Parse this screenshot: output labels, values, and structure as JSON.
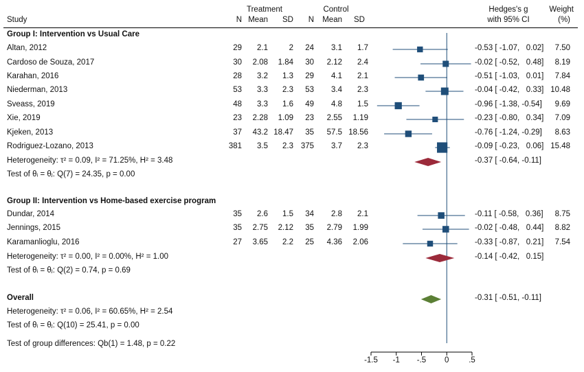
{
  "header": {
    "study": "Study",
    "treatment": "Treatment",
    "control": "Control",
    "n": "N",
    "mean": "Mean",
    "sd": "SD",
    "effect_line1": "Hedges's g",
    "effect_line2": "with 95% CI",
    "weight_line1": "Weight",
    "weight_line2": "(%)"
  },
  "groups": [
    {
      "title": "Group I: Intervention vs Usual Care",
      "studies": [
        {
          "name": "Altan, 2012",
          "tn": "29",
          "tmean": "2.1",
          "tsd": "2",
          "cn": "24",
          "cmean": "3.1",
          "csd": "1.7",
          "g": -0.53,
          "lo": -1.07,
          "hi": 0.02,
          "ci": "-0.53 [ -1.07,   0.02]",
          "weight": "7.50",
          "w": 7.5
        },
        {
          "name": "Cardoso de Souza, 2017",
          "tn": "30",
          "tmean": "2.08",
          "tsd": "1.84",
          "cn": "30",
          "cmean": "2.12",
          "csd": "2.4",
          "g": -0.02,
          "lo": -0.52,
          "hi": 0.48,
          "ci": "-0.02 [ -0.52,   0.48]",
          "weight": "8.19",
          "w": 8.19
        },
        {
          "name": "Karahan, 2016",
          "tn": "28",
          "tmean": "3.2",
          "tsd": "1.3",
          "cn": "29",
          "cmean": "4.1",
          "csd": "2.1",
          "g": -0.51,
          "lo": -1.03,
          "hi": 0.01,
          "ci": "-0.51 [ -1.03,   0.01]",
          "weight": "7.84",
          "w": 7.84
        },
        {
          "name": "Niederman, 2013",
          "tn": "53",
          "tmean": "3.3",
          "tsd": "2.3",
          "cn": "53",
          "cmean": "3.4",
          "csd": "2.3",
          "g": -0.04,
          "lo": -0.42,
          "hi": 0.33,
          "ci": "-0.04 [ -0.42,   0.33]",
          "weight": "10.48",
          "w": 10.48
        },
        {
          "name": "Sveass, 2019",
          "tn": "48",
          "tmean": "3.3",
          "tsd": "1.6",
          "cn": "49",
          "cmean": "4.8",
          "csd": "1.5",
          "g": -0.96,
          "lo": -1.38,
          "hi": -0.54,
          "ci": "-0.96 [ -1.38, -0.54]",
          "weight": "9.69",
          "w": 9.69
        },
        {
          "name": "Xie, 2019",
          "tn": "23",
          "tmean": "2.28",
          "tsd": "1.09",
          "cn": "23",
          "cmean": "2.55",
          "csd": "1.19",
          "g": -0.23,
          "lo": -0.8,
          "hi": 0.34,
          "ci": "-0.23 [ -0.80,   0.34]",
          "weight": "7.09",
          "w": 7.09
        },
        {
          "name": "Kjeken, 2013",
          "tn": "37",
          "tmean": "43.2",
          "tsd": "18.47",
          "cn": "35",
          "cmean": "57.5",
          "csd": "18.56",
          "g": -0.76,
          "lo": -1.24,
          "hi": -0.29,
          "ci": "-0.76 [ -1.24, -0.29]",
          "weight": "8.63",
          "w": 8.63
        },
        {
          "name": "Rodriguez-Lozano, 2013",
          "tn": "381",
          "tmean": "3.5",
          "tsd": "2.3",
          "cn": "375",
          "cmean": "3.7",
          "csd": "2.3",
          "g": -0.09,
          "lo": -0.23,
          "hi": 0.06,
          "ci": "-0.09 [ -0.23,   0.06]",
          "weight": "15.48",
          "w": 15.48
        }
      ],
      "heterogeneity": "Heterogeneity: τ² = 0.09, I² = 71.25%, H² = 3.48",
      "pooled": {
        "g": -0.37,
        "lo": -0.64,
        "hi": -0.11,
        "ci": "-0.37 [ -0.64, -0.11]"
      },
      "test": "Test of θᵢ = θⱼ: Q(7) = 24.35, p = 0.00"
    },
    {
      "title": "Group II: Intervention vs Home-based exercise program",
      "studies": [
        {
          "name": "Dundar, 2014",
          "tn": "35",
          "tmean": "2.6",
          "tsd": "1.5",
          "cn": "34",
          "cmean": "2.8",
          "csd": "2.1",
          "g": -0.11,
          "lo": -0.58,
          "hi": 0.36,
          "ci": "-0.11 [ -0.58,   0.36]",
          "weight": "8.75",
          "w": 8.75
        },
        {
          "name": "Jennings, 2015",
          "tn": "35",
          "tmean": "2.75",
          "tsd": "2.12",
          "cn": "35",
          "cmean": "2.79",
          "csd": "1.99",
          "g": -0.02,
          "lo": -0.48,
          "hi": 0.44,
          "ci": "-0.02 [ -0.48,   0.44]",
          "weight": "8.82",
          "w": 8.82
        },
        {
          "name": "Karamanlioglu, 2016",
          "tn": "27",
          "tmean": "3.65",
          "tsd": "2.2",
          "cn": "25",
          "cmean": "4.36",
          "csd": "2.06",
          "g": -0.33,
          "lo": -0.87,
          "hi": 0.21,
          "ci": "-0.33 [ -0.87,   0.21]",
          "weight": "7.54",
          "w": 7.54
        }
      ],
      "heterogeneity": "Heterogeneity: τ² = 0.00, I² = 0.00%, H² = 1.00",
      "pooled": {
        "g": -0.14,
        "lo": -0.42,
        "hi": 0.15,
        "ci": "-0.14 [ -0.42,   0.15]"
      },
      "test": "Test of θᵢ = θⱼ: Q(2) = 0.74, p = 0.69"
    }
  ],
  "overall": {
    "title": "Overall",
    "heterogeneity": "Heterogeneity: τ² = 0.06, I² = 60.65%, H² = 2.54",
    "pooled": {
      "g": -0.31,
      "lo": -0.51,
      "hi": -0.11,
      "ci": "-0.31 [ -0.51, -0.11]"
    },
    "test": "Test of θᵢ = θⱼ: Q(10) = 25.41, p = 0.00",
    "group_test": "Test of group differences: Qb(1) = 1.48, p = 0.22"
  },
  "chart_data": {
    "type": "forest",
    "xlim": [
      -1.5,
      0.5
    ],
    "ticks": [
      -1.5,
      -1,
      -0.5,
      0,
      0.5
    ],
    "tick_labels": [
      "-1.5",
      "-1",
      "-.5",
      "0",
      ".5"
    ],
    "reference_line": 0,
    "colors": {
      "study": "#1f4e79",
      "group_diamond": "#9b2a3a",
      "overall_diamond": "#5b7f35",
      "ref_line": "#1f4e79"
    }
  }
}
